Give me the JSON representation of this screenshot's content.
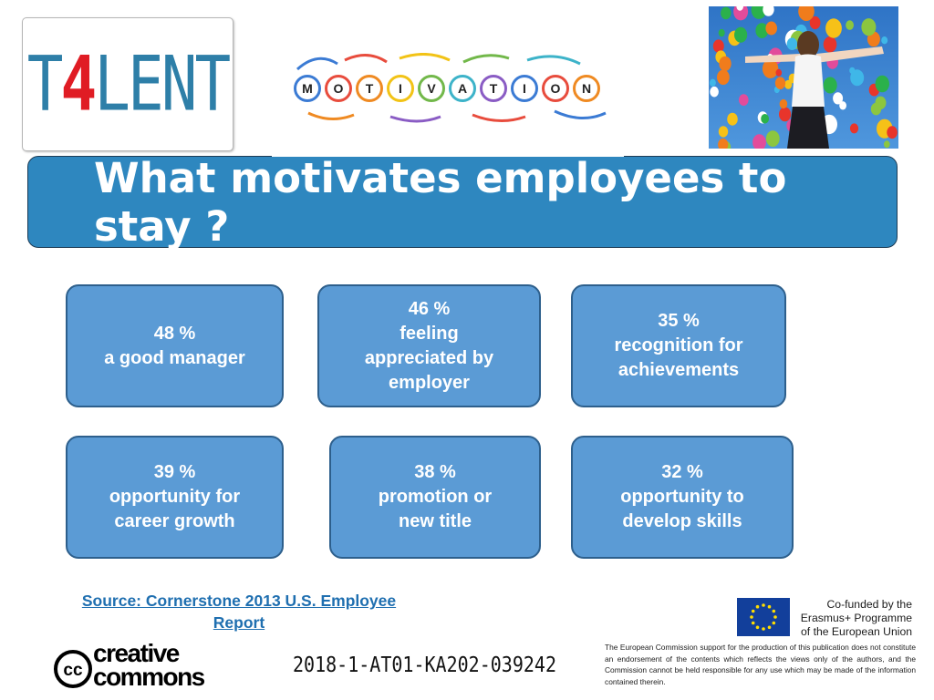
{
  "logo": {
    "part1": "T",
    "digit": "4",
    "part2": "LENT"
  },
  "motivation": {
    "letters": [
      "M",
      "O",
      "T",
      "I",
      "V",
      "A",
      "T",
      "I",
      "O",
      "N"
    ],
    "ring_colors": [
      "#3b7bd4",
      "#e84c3d",
      "#ef8a22",
      "#f2c316",
      "#72b84a",
      "#3db3c9",
      "#8a5cc4",
      "#3b7bd4",
      "#e84c3d",
      "#ef8a22"
    ]
  },
  "title": "What motivates employees to stay ?",
  "stats": [
    {
      "percent": "48 %",
      "lines": [
        "a good manager"
      ]
    },
    {
      "percent": "46 %",
      "lines": [
        "feeling",
        "appreciated by",
        "employer"
      ]
    },
    {
      "percent": "35 %",
      "lines": [
        "recognition for",
        "achievements"
      ]
    },
    {
      "percent": "39 %",
      "lines": [
        "opportunity for",
        "career growth"
      ]
    },
    {
      "percent": "38 %",
      "lines": [
        "promotion or",
        "new title"
      ]
    },
    {
      "percent": "32 %",
      "lines": [
        "opportunity to",
        "develop skills"
      ]
    }
  ],
  "source": {
    "line1": "Source: Cornerstone 2013 U.S. Employee",
    "line2": "Report"
  },
  "creative_commons": {
    "line1": "creative",
    "line2": "commons",
    "badge": "cc"
  },
  "project_id": "2018-1-AT01-KA202-039242",
  "eu": {
    "line1": "Co-funded by the",
    "line2": "Erasmus+ Programme",
    "line3": "of the European Union"
  },
  "disclaimer": "The European Commission support for the production of this publication does not constitute an endorsement of the contents which reflects the views only of the authors, and the Commission cannot be held responsible for any use which may be made of the information contained therein.",
  "colors": {
    "title_bar": "#2e87bf",
    "card_fill": "#5b9bd5",
    "card_border": "#2d5f8c",
    "logo_blue": "#2e7fa8",
    "logo_red": "#e01c24",
    "link_blue": "#1f6fb0"
  }
}
